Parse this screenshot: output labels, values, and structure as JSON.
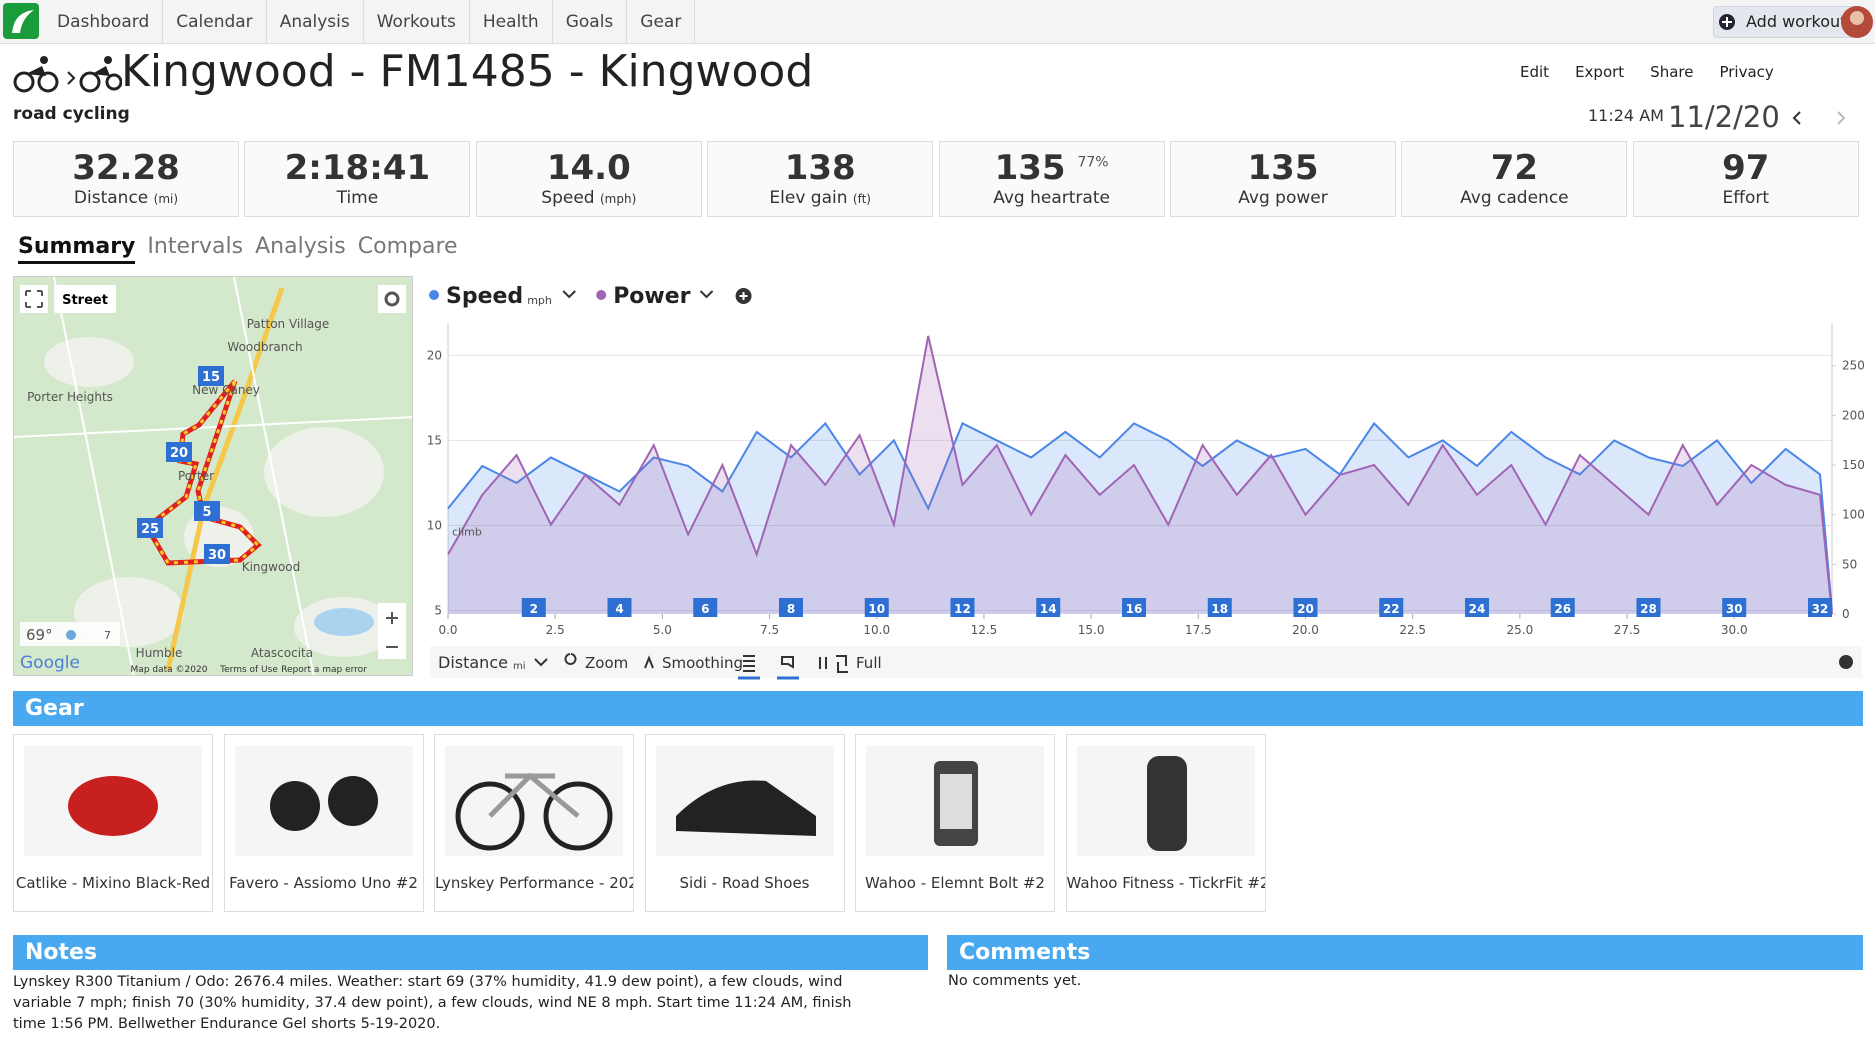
{
  "nav": {
    "items": [
      "Dashboard",
      "Calendar",
      "Analysis",
      "Workouts",
      "Health",
      "Goals",
      "Gear"
    ],
    "add_workout": "Add workout"
  },
  "header": {
    "title": "Kingwood - FM1485 - Kingwood",
    "sport": "road cycling",
    "actions": [
      "Edit",
      "Export",
      "Share",
      "Privacy"
    ],
    "time": "11:24 AM",
    "date": "11/2/20"
  },
  "stats": [
    {
      "value": "32.28",
      "label": "Distance",
      "unit": "(mi)"
    },
    {
      "value": "2:18:41",
      "label": "Time"
    },
    {
      "value": "14.0",
      "label": "Speed",
      "unit": "(mph)"
    },
    {
      "value": "138",
      "label": "Elev gain",
      "unit": "(ft)"
    },
    {
      "value": "135",
      "label": "Avg heartrate",
      "sup": "77%"
    },
    {
      "value": "135",
      "label": "Avg power"
    },
    {
      "value": "72",
      "label": "Avg cadence"
    },
    {
      "value": "97",
      "label": "Effort"
    }
  ],
  "tabs": [
    "Summary",
    "Intervals",
    "Analysis",
    "Compare"
  ],
  "map": {
    "mode": "Street",
    "places": [
      "Patton Village",
      "Woodbranch",
      "New Caney",
      "Porter Heights",
      "Porter",
      "Kingwood",
      "Humble",
      "Atascocita"
    ],
    "markers": [
      "15",
      "20",
      "25",
      "5",
      "30"
    ],
    "temp": "69°",
    "wind": "7",
    "brand": "Google",
    "footer": [
      "Map data ©2020",
      "Terms of Use",
      "Report a map error"
    ]
  },
  "chart_data": {
    "type": "line",
    "x_label": "Distance",
    "x_unit": "mi",
    "annotation": "climb",
    "x": [
      0,
      0.8,
      1.6,
      2.4,
      3.2,
      4.0,
      4.8,
      5.6,
      6.4,
      7.2,
      8.0,
      8.8,
      9.6,
      10.4,
      11.2,
      12.0,
      12.8,
      13.6,
      14.4,
      15.2,
      16.0,
      16.8,
      17.6,
      18.4,
      19.2,
      20.0,
      20.8,
      21.6,
      22.4,
      23.2,
      24.0,
      24.8,
      25.6,
      26.4,
      27.2,
      28.0,
      28.8,
      29.6,
      30.4,
      31.2,
      32.0,
      32.28
    ],
    "series": [
      {
        "name": "Speed",
        "unit": "mph",
        "color": "#4a86e8",
        "values": [
          11,
          13.5,
          12.5,
          14,
          13,
          12,
          14,
          13.5,
          12,
          15.5,
          14,
          16,
          13,
          15,
          11,
          16,
          15,
          14,
          15.5,
          14,
          16,
          15,
          13.5,
          15,
          14,
          14.5,
          13,
          16,
          14,
          15,
          13.5,
          15.5,
          14,
          13,
          15,
          14,
          13.5,
          15,
          12.5,
          14.5,
          13,
          5
        ]
      },
      {
        "name": "Power",
        "color": "#a064b4",
        "axis": "y2",
        "values": [
          60,
          120,
          160,
          90,
          140,
          110,
          170,
          80,
          150,
          60,
          170,
          130,
          180,
          90,
          280,
          130,
          170,
          100,
          160,
          120,
          150,
          90,
          170,
          120,
          160,
          100,
          140,
          150,
          110,
          170,
          120,
          150,
          90,
          160,
          130,
          100,
          170,
          110,
          150,
          130,
          120,
          0
        ]
      }
    ],
    "xlim": [
      0,
      32.28
    ],
    "ylim": [
      4.8,
      21.9
    ],
    "y2lim": [
      0,
      293
    ],
    "yticks": [
      5,
      10,
      15,
      20
    ],
    "y2ticks": [
      0,
      50,
      100,
      150,
      200,
      250
    ],
    "xticks": [
      {
        "value": 0,
        "label": "0.0"
      },
      {
        "value": 2.5,
        "label": "2.5"
      },
      {
        "value": 5,
        "label": "5.0"
      },
      {
        "value": 7.5,
        "label": "7.5"
      },
      {
        "value": 10,
        "label": "10.0"
      },
      {
        "value": 12.5,
        "label": "12.5"
      },
      {
        "value": 15,
        "label": "15.0"
      },
      {
        "value": 17.5,
        "label": "17.5"
      },
      {
        "value": 20,
        "label": "20.0"
      },
      {
        "value": 22.5,
        "label": "22.5"
      },
      {
        "value": 25,
        "label": "25.0"
      },
      {
        "value": 27.5,
        "label": "27.5"
      },
      {
        "value": 30,
        "label": "30.0"
      }
    ],
    "mile_markers": [
      2,
      4,
      6,
      8,
      10,
      12,
      14,
      16,
      18,
      20,
      22,
      24,
      26,
      28,
      30,
      32
    ],
    "controls": [
      "Zoom",
      "Smoothing",
      "Full"
    ]
  },
  "gear": {
    "title": "Gear",
    "items": [
      "Catlike - Mixino Black-Red",
      "Favero - Assiomo Uno #2",
      "Lynskey Performance - 202",
      "Sidi - Road Shoes",
      "Wahoo - Elemnt Bolt #2",
      "Wahoo Fitness - TickrFit #2"
    ]
  },
  "notes": {
    "title": "Notes",
    "text": "Lynskey R300 Titanium / Odo: 2676.4 miles. Weather: start 69 (37% humidity, 41.9 dew point), a few clouds, wind variable 7 mph; finish 70 (30% humidity, 37.4 dew point), a few clouds, wind NE 8 mph. Start time 11:24 AM, finish time 1:56 PM. Bellwether Endurance Gel shorts 5-19-2020."
  },
  "comments": {
    "title": "Comments",
    "text": "No comments yet."
  }
}
